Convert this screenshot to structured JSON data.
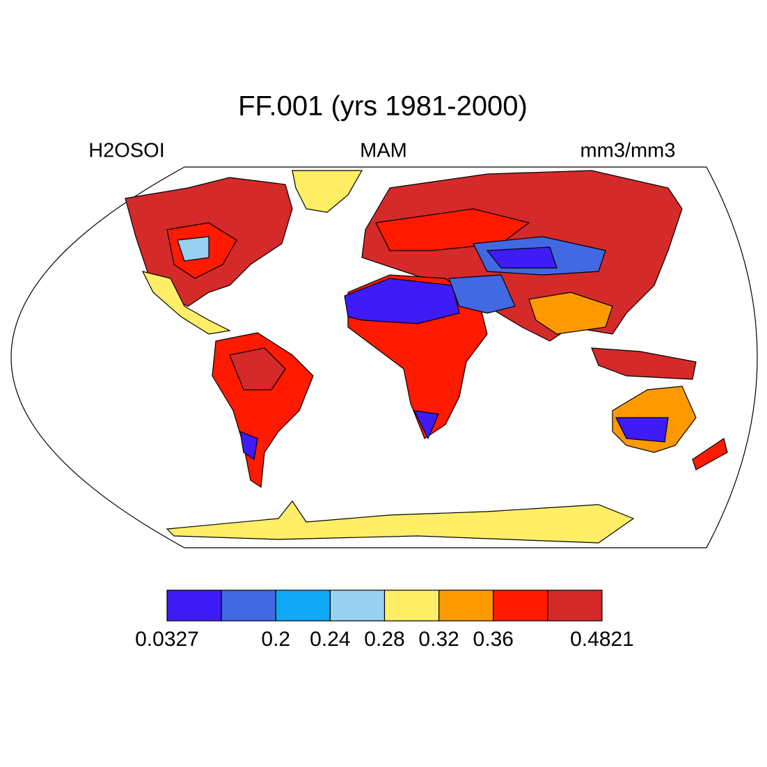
{
  "title": "FF.001 (yrs 1981-2000)",
  "left_label": "H2OSOI",
  "center_label": "MAM",
  "right_label": "mm3/mm3",
  "colorbar": {
    "colors": [
      "#3f1cf5",
      "#4169e1",
      "#10a8f5",
      "#96d2f0",
      "#ffee66",
      "#ff9900",
      "#ff1a00",
      "#d42a2a"
    ],
    "labels": [
      0.0327,
      null,
      0.2,
      0.24,
      0.28,
      0.32,
      0.36,
      null,
      0.4821
    ]
  }
}
